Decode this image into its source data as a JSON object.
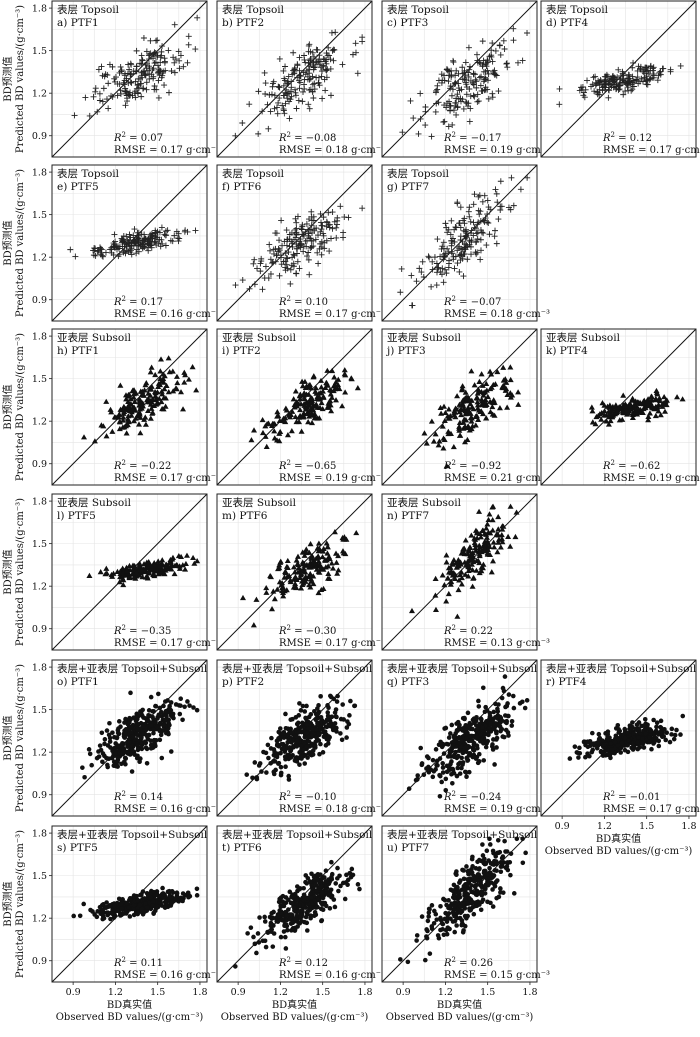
{
  "chart_data": {
    "type": "scatter",
    "axis_ticks": [
      "0.9",
      "1.2",
      "1.5",
      "1.8"
    ],
    "xlim": [
      0.75,
      1.85
    ],
    "ylim": [
      0.75,
      1.85
    ],
    "grid": true,
    "reference_line": "1:1",
    "xlabel_cn": "BD真实值",
    "xlabel_en": "Observed BD values/(g·cm⁻³)",
    "ylabel_cn": "BD预测值",
    "ylabel_en": "Predicted BD values/(g·cm⁻³)",
    "r2_symbol": "R",
    "rmse_prefix": "RMSE = ",
    "rmse_unit": " g·cm⁻³",
    "marker_by_layer": {
      "Topsoil": "plus",
      "Subsoil": "triangle",
      "Topsoil+Subsoil": "dot"
    },
    "panels": [
      {
        "id": "a",
        "label": "a) PTF1",
        "layer": "Topsoil",
        "layer_title": "表层 Topsoil",
        "r2": "0.07",
        "rmse": "0.17",
        "pred_center": 1.32,
        "pred_slope": 0.45,
        "pred_spread": 0.09,
        "x_center": 1.35,
        "x_spread": 0.16,
        "n": 180
      },
      {
        "id": "b",
        "label": "b) PTF2",
        "layer": "Topsoil",
        "layer_title": "表层 Topsoil",
        "r2": "−0.08",
        "rmse": "0.18",
        "pred_center": 1.3,
        "pred_slope": 0.55,
        "pred_spread": 0.1,
        "x_center": 1.35,
        "x_spread": 0.16,
        "n": 180
      },
      {
        "id": "c",
        "label": "c) PTF3",
        "layer": "Topsoil",
        "layer_title": "表层 Topsoil",
        "r2": "−0.17",
        "rmse": "0.19",
        "pred_center": 1.28,
        "pred_slope": 0.6,
        "pred_spread": 0.11,
        "x_center": 1.35,
        "x_spread": 0.16,
        "n": 180
      },
      {
        "id": "d",
        "label": "d) PTF4",
        "layer": "Topsoil",
        "layer_title": "表层 Topsoil",
        "r2": "0.12",
        "rmse": "0.17",
        "pred_center": 1.3,
        "pred_slope": 0.22,
        "pred_spread": 0.04,
        "x_center": 1.35,
        "x_spread": 0.16,
        "n": 180
      },
      {
        "id": "e",
        "label": "e) PTF5",
        "layer": "Topsoil",
        "layer_title": "表层 Topsoil",
        "r2": "0.17",
        "rmse": "0.16",
        "pred_center": 1.3,
        "pred_slope": 0.18,
        "pred_spread": 0.035,
        "x_center": 1.35,
        "x_spread": 0.16,
        "n": 180
      },
      {
        "id": "f",
        "label": "f) PTF6",
        "layer": "Topsoil",
        "layer_title": "表层 Topsoil",
        "r2": "0.10",
        "rmse": "0.17",
        "pred_center": 1.3,
        "pred_slope": 0.55,
        "pred_spread": 0.09,
        "x_center": 1.35,
        "x_spread": 0.16,
        "n": 180
      },
      {
        "id": "g",
        "label": "g) PTF7",
        "layer": "Topsoil",
        "layer_title": "表层 Topsoil",
        "r2": "−0.07",
        "rmse": "0.18",
        "pred_center": 1.34,
        "pred_slope": 0.8,
        "pred_spread": 0.11,
        "x_center": 1.35,
        "x_spread": 0.16,
        "n": 180
      },
      {
        "id": "h",
        "label": "h) PTF1",
        "layer": "Subsoil",
        "layer_title": "亚表层 Subsoil",
        "r2": "−0.22",
        "rmse": "0.17",
        "pred_center": 1.33,
        "pred_slope": 0.55,
        "pred_spread": 0.08,
        "x_center": 1.4,
        "x_spread": 0.14,
        "n": 170
      },
      {
        "id": "i",
        "label": "i) PTF2",
        "layer": "Subsoil",
        "layer_title": "亚表层 Subsoil",
        "r2": "−0.65",
        "rmse": "0.19",
        "pred_center": 1.31,
        "pred_slope": 0.55,
        "pred_spread": 0.08,
        "x_center": 1.4,
        "x_spread": 0.14,
        "n": 170
      },
      {
        "id": "j",
        "label": "j) PTF3",
        "layer": "Subsoil",
        "layer_title": "亚表层 Subsoil",
        "r2": "−0.92",
        "rmse": "0.21",
        "pred_center": 1.3,
        "pred_slope": 0.6,
        "pred_spread": 0.09,
        "x_center": 1.4,
        "x_spread": 0.14,
        "n": 170
      },
      {
        "id": "k",
        "label": "k) PTF4",
        "layer": "Subsoil",
        "layer_title": "亚表层 Subsoil",
        "r2": "−0.62",
        "rmse": "0.19",
        "pred_center": 1.29,
        "pred_slope": 0.2,
        "pred_spread": 0.035,
        "x_center": 1.4,
        "x_spread": 0.14,
        "n": 170
      },
      {
        "id": "l",
        "label": "l) PTF5",
        "layer": "Subsoil",
        "layer_title": "亚表层 Subsoil",
        "r2": "−0.35",
        "rmse": "0.17",
        "pred_center": 1.31,
        "pred_slope": 0.18,
        "pred_spread": 0.03,
        "x_center": 1.4,
        "x_spread": 0.14,
        "n": 170
      },
      {
        "id": "m",
        "label": "m) PTF6",
        "layer": "Subsoil",
        "layer_title": "亚表层 Subsoil",
        "r2": "−0.30",
        "rmse": "0.17",
        "pred_center": 1.32,
        "pred_slope": 0.6,
        "pred_spread": 0.08,
        "x_center": 1.4,
        "x_spread": 0.14,
        "n": 170
      },
      {
        "id": "n",
        "label": "n) PTF7",
        "layer": "Subsoil",
        "layer_title": "亚表层 Subsoil",
        "r2": "0.22",
        "rmse": "0.13",
        "pred_center": 1.42,
        "pred_slope": 0.85,
        "pred_spread": 0.09,
        "x_center": 1.4,
        "x_spread": 0.14,
        "n": 170
      },
      {
        "id": "o",
        "label": "o) PTF1",
        "layer": "Topsoil+Subsoil",
        "layer_title": "表层+亚表层 Topsoil+Subsoil",
        "r2": "0.14",
        "rmse": "0.16",
        "pred_center": 1.32,
        "pred_slope": 0.5,
        "pred_spread": 0.08,
        "x_center": 1.37,
        "x_spread": 0.15,
        "n": 340
      },
      {
        "id": "p",
        "label": "p) PTF2",
        "layer": "Topsoil+Subsoil",
        "layer_title": "表层+亚表层 Topsoil+Subsoil",
        "r2": "−0.10",
        "rmse": "0.18",
        "pred_center": 1.31,
        "pred_slope": 0.55,
        "pred_spread": 0.09,
        "x_center": 1.37,
        "x_spread": 0.15,
        "n": 340
      },
      {
        "id": "q",
        "label": "q) PTF3",
        "layer": "Topsoil+Subsoil",
        "layer_title": "表层+亚表层 Topsoil+Subsoil",
        "r2": "−0.24",
        "rmse": "0.19",
        "pred_center": 1.29,
        "pred_slope": 0.6,
        "pred_spread": 0.1,
        "x_center": 1.37,
        "x_spread": 0.15,
        "n": 340
      },
      {
        "id": "r",
        "label": "r) PTF4",
        "layer": "Topsoil+Subsoil",
        "layer_title": "表层+亚表层 Topsoil+Subsoil",
        "r2": "−0.01",
        "rmse": "0.17",
        "pred_center": 1.29,
        "pred_slope": 0.22,
        "pred_spread": 0.04,
        "x_center": 1.37,
        "x_spread": 0.15,
        "n": 340
      },
      {
        "id": "s",
        "label": "s) PTF5",
        "layer": "Topsoil+Subsoil",
        "layer_title": "表层+亚表层 Topsoil+Subsoil",
        "r2": "0.11",
        "rmse": "0.16",
        "pred_center": 1.3,
        "pred_slope": 0.18,
        "pred_spread": 0.035,
        "x_center": 1.37,
        "x_spread": 0.15,
        "n": 340
      },
      {
        "id": "t",
        "label": "t) PTF6",
        "layer": "Topsoil+Subsoil",
        "layer_title": "表层+亚表层 Topsoil+Subsoil",
        "r2": "0.12",
        "rmse": "0.16",
        "pred_center": 1.31,
        "pred_slope": 0.6,
        "pred_spread": 0.08,
        "x_center": 1.37,
        "x_spread": 0.15,
        "n": 340
      },
      {
        "id": "u",
        "label": "u) PTF7",
        "layer": "Topsoil+Subsoil",
        "layer_title": "表层+亚表层 Topsoil+Subsoil",
        "r2": "0.26",
        "rmse": "0.15",
        "pred_center": 1.38,
        "pred_slope": 0.85,
        "pred_spread": 0.1,
        "x_center": 1.37,
        "x_spread": 0.15,
        "n": 340
      }
    ]
  }
}
